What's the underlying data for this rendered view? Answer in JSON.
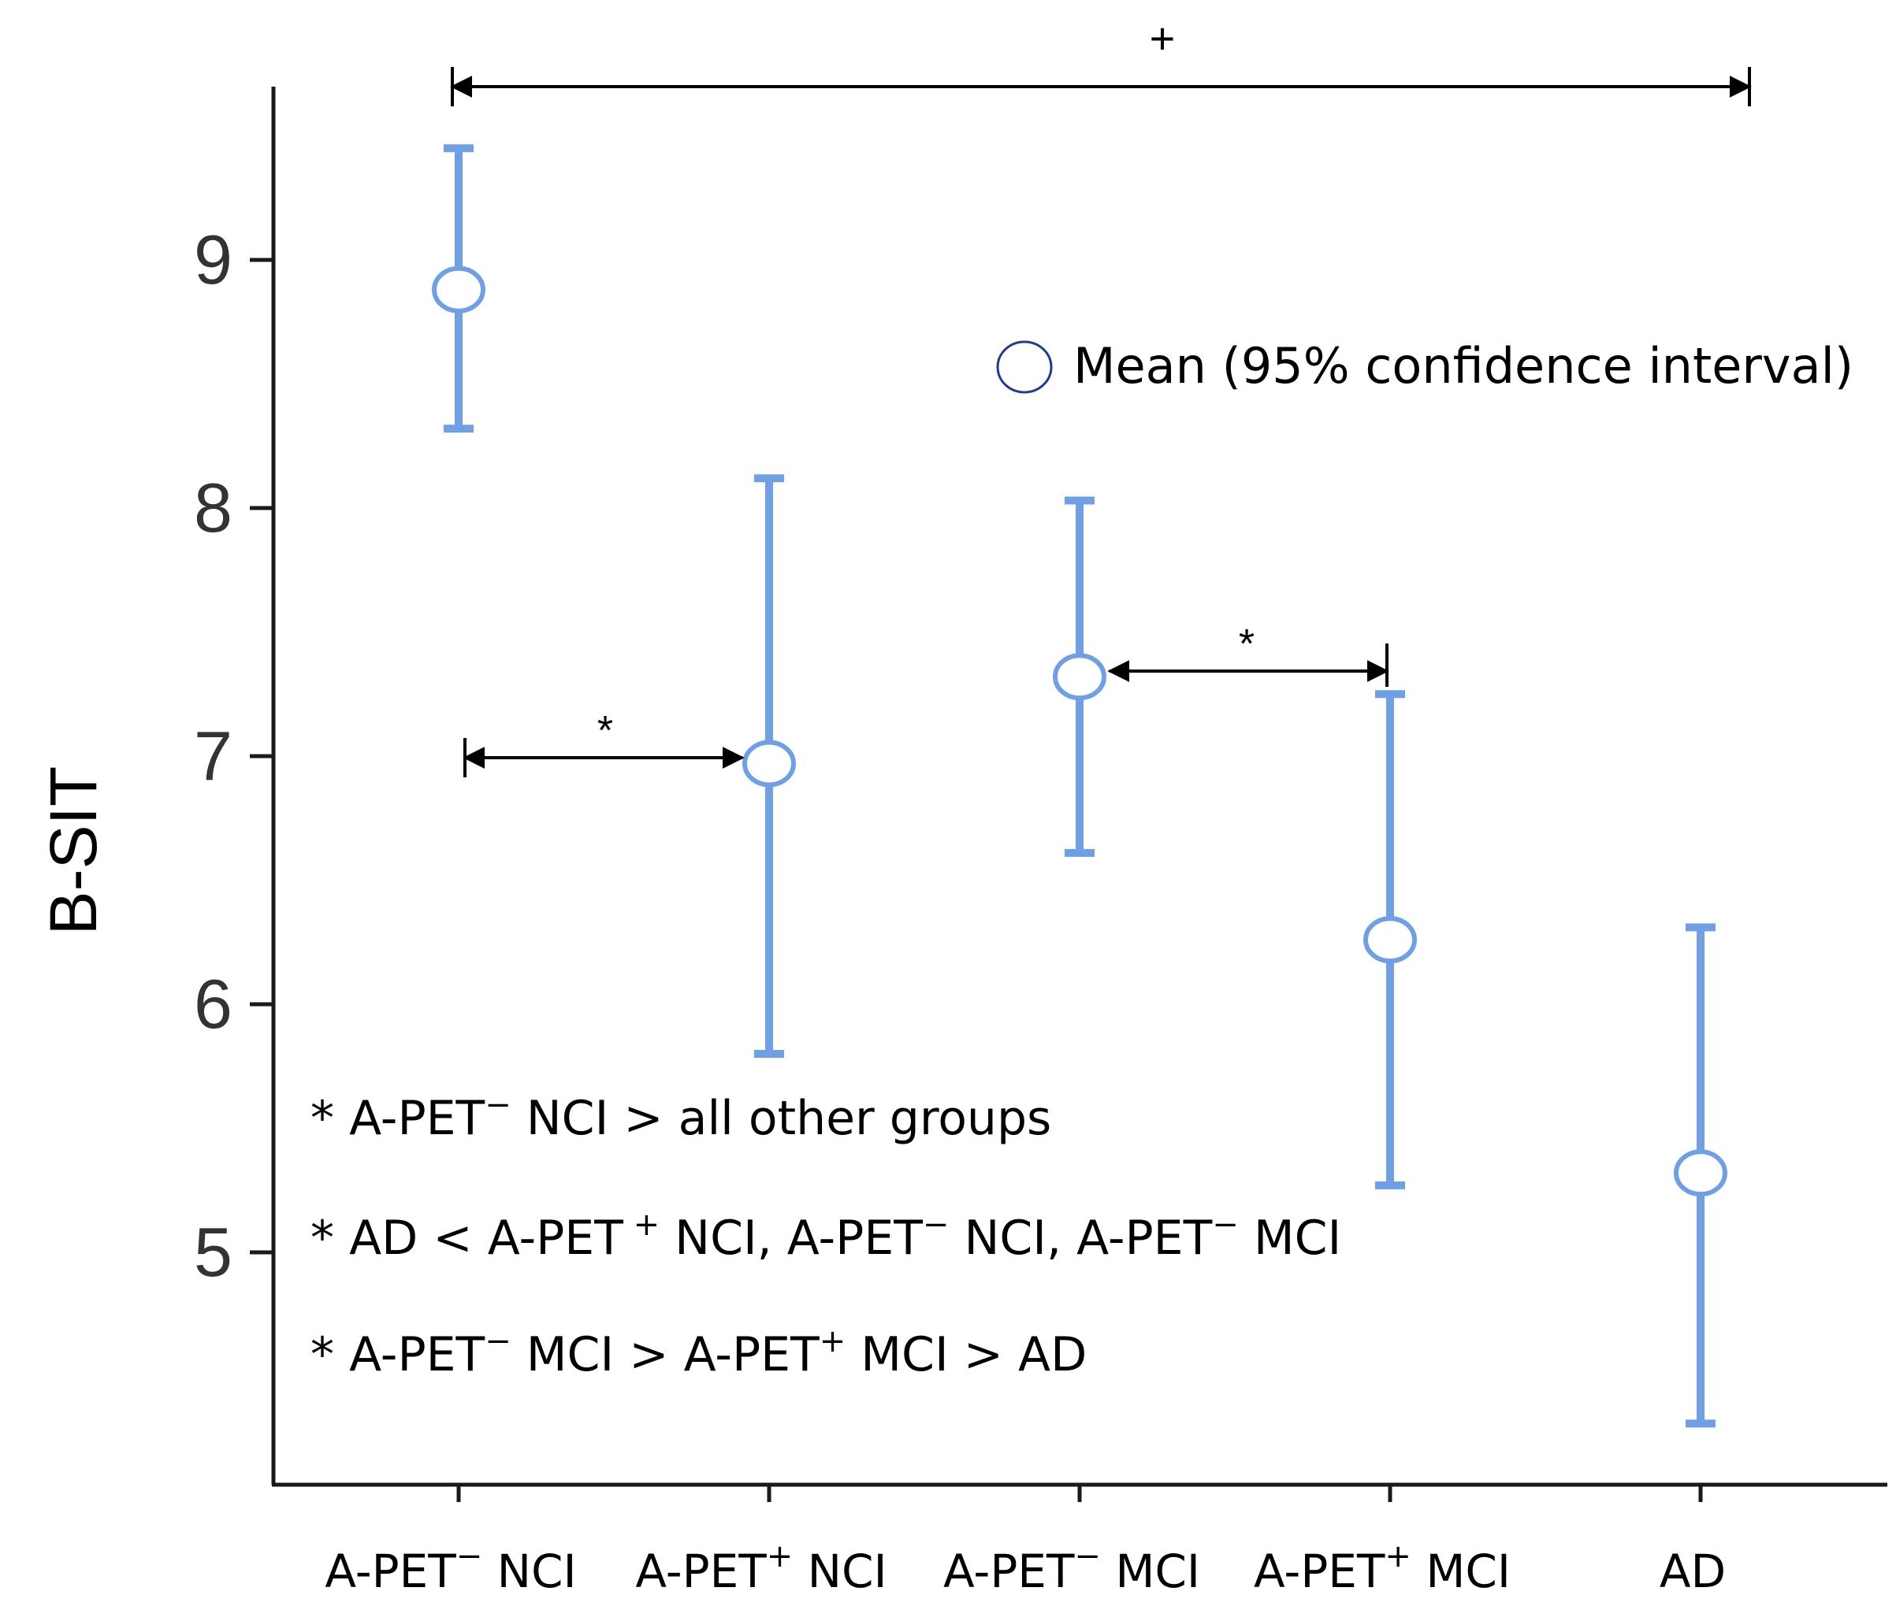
{
  "chart_data": {
    "type": "scatter",
    "title": "",
    "xlabel": "",
    "ylabel": "B-SIT",
    "ylim": [
      4.1,
      9.75
    ],
    "yticks": [
      5,
      6,
      7,
      8,
      9
    ],
    "ytick_labels": [
      "5",
      "6",
      "7",
      "8",
      "9"
    ],
    "grid": false,
    "categories": [
      {
        "base": "A-PET",
        "sup": "−",
        "suffix": " NCI"
      },
      {
        "base": "A-PET",
        "sup": "+",
        "suffix": " NCI"
      },
      {
        "base": "A-PET",
        "sup": "−",
        "suffix": " MCI"
      },
      {
        "base": "A-PET",
        "sup": "+",
        "suffix": " MCI"
      },
      {
        "base": "AD",
        "sup": "",
        "suffix": ""
      }
    ],
    "series": [
      {
        "name": "Mean (95% confidence interval)",
        "mean": [
          8.88,
          6.97,
          7.32,
          6.26,
          5.32
        ],
        "ci_low": [
          8.32,
          5.8,
          6.61,
          5.27,
          4.31
        ],
        "ci_high": [
          9.45,
          8.12,
          8.03,
          7.25,
          6.31
        ]
      }
    ],
    "legend": {
      "label": "Mean (95% confidence interval)",
      "position": "top-right"
    },
    "comparisons": [
      {
        "from": 0,
        "to": 4,
        "symbol": "+"
      },
      {
        "from": 0,
        "to": 1,
        "symbol": "*"
      },
      {
        "from": 2,
        "to": 3,
        "symbol": "*"
      }
    ],
    "annotations": [
      {
        "marker": "*",
        "parts": [
          {
            "t": "A-PET"
          },
          {
            "t": "−",
            "sup": true
          },
          {
            "t": " NCI  > all other groups"
          }
        ]
      },
      {
        "marker": "*",
        "parts": [
          {
            "t": "AD  < A-PET"
          },
          {
            "t": " +",
            "sup": true
          },
          {
            "t": " NCI, A-PET"
          },
          {
            "t": "−",
            "sup": true
          },
          {
            "t": " NCI, A-PET"
          },
          {
            "t": "−",
            "sup": true
          },
          {
            "t": " MCI"
          }
        ]
      },
      {
        "marker": "*",
        "parts": [
          {
            "t": "A-PET"
          },
          {
            "t": "−",
            "sup": true
          },
          {
            "t": " MCI > A-PET"
          },
          {
            "t": "+",
            "sup": true
          },
          {
            "t": " MCI > AD"
          }
        ]
      }
    ],
    "colors": {
      "errorbar": "#6fa0e6",
      "marker_edge": "#6fa0e6",
      "legend_marker_edge": "#1f3d8c",
      "axis": "#1a1a1a",
      "text": "#000000"
    }
  }
}
